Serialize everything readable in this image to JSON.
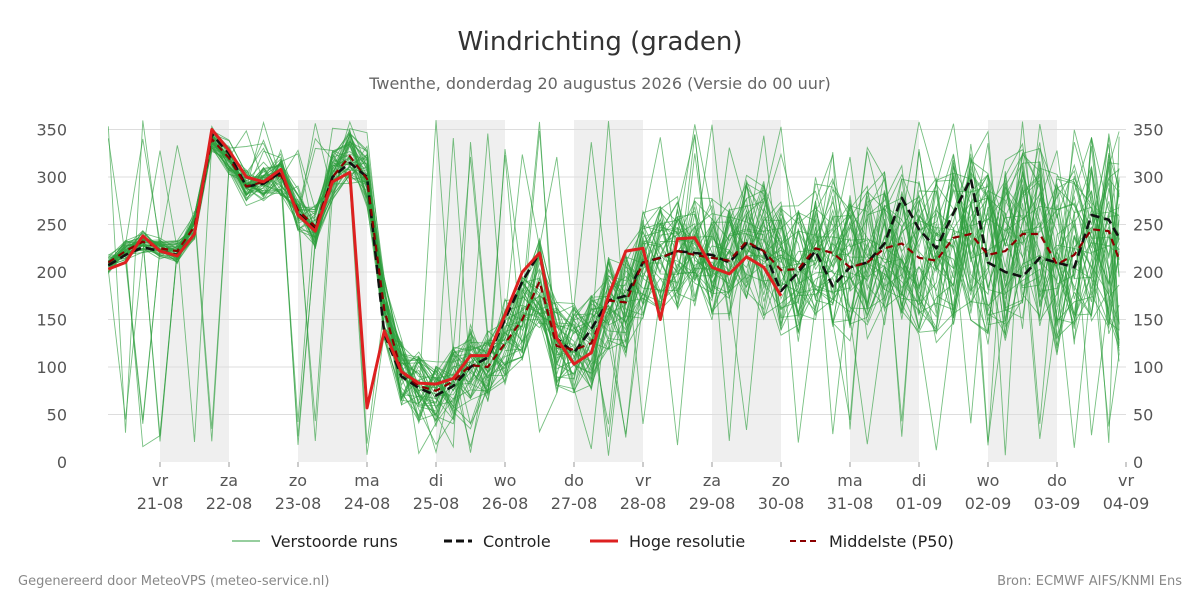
{
  "chart_data": {
    "type": "line",
    "title": "Windrichting (graden)",
    "subtitle": "Twenthe, donderdag 20 augustus 2026 (Versie do 00 uur)",
    "ylim": [
      0,
      360
    ],
    "y_ticks": [
      0,
      50,
      100,
      150,
      200,
      250,
      300,
      350
    ],
    "x_range": [
      -0.75,
      13.9
    ],
    "x_ticks": [
      {
        "day": "vr",
        "date": "21-08"
      },
      {
        "day": "za",
        "date": "22-08"
      },
      {
        "day": "zo",
        "date": "23-08"
      },
      {
        "day": "ma",
        "date": "24-08"
      },
      {
        "day": "di",
        "date": "25-08"
      },
      {
        "day": "wo",
        "date": "26-08"
      },
      {
        "day": "do",
        "date": "27-08"
      },
      {
        "day": "vr",
        "date": "28-08"
      },
      {
        "day": "za",
        "date": "29-08"
      },
      {
        "day": "zo",
        "date": "30-08"
      },
      {
        "day": "ma",
        "date": "31-08"
      },
      {
        "day": "di",
        "date": "01-09"
      },
      {
        "day": "wo",
        "date": "02-09"
      },
      {
        "day": "do",
        "date": "03-09"
      },
      {
        "day": "vr",
        "date": "04-09"
      }
    ],
    "weekend_bands": [
      [
        0,
        1
      ],
      [
        2,
        3
      ],
      [
        4,
        5
      ],
      [
        6,
        7
      ],
      [
        8,
        9
      ],
      [
        10,
        11
      ],
      [
        12,
        13
      ]
    ],
    "legend": {
      "position": "bottom",
      "entries": [
        "Verstoorde runs",
        "Controle",
        "Hoge resolutie",
        "Middelste (P50)"
      ]
    },
    "colors": {
      "ensemble": "#2e9e3e",
      "controle": "#111111",
      "hoge_resolutie": "#dd2020",
      "middelste": "#8b0000",
      "band": "#efefef",
      "grid": "#dddddd"
    },
    "ensemble_count": 50,
    "series": [
      {
        "name": "Controle",
        "x": [
          -0.75,
          -0.5,
          -0.25,
          0,
          0.25,
          0.5,
          0.75,
          1,
          1.25,
          1.5,
          1.75,
          2,
          2.25,
          2.5,
          2.75,
          3,
          3.25,
          3.5,
          3.75,
          4,
          4.25,
          4.5,
          4.75,
          5,
          5.25,
          5.5,
          5.75,
          6,
          6.25,
          6.5,
          6.75,
          7,
          7.25,
          7.5,
          7.75,
          8,
          8.25,
          8.5,
          8.75,
          9,
          9.25,
          9.5,
          9.75,
          10,
          10.25,
          10.5,
          10.75,
          11,
          11.25,
          11.5,
          11.75,
          12,
          12.25,
          12.5,
          12.75,
          13,
          13.25,
          13.5,
          13.75,
          13.9
        ],
        "values": [
          207,
          218,
          226,
          222,
          218,
          240,
          345,
          325,
          290,
          293,
          305,
          262,
          245,
          300,
          315,
          300,
          135,
          90,
          78,
          70,
          80,
          100,
          110,
          150,
          190,
          220,
          130,
          115,
          140,
          170,
          175,
          210,
          215,
          222,
          220,
          218,
          210,
          230,
          222,
          180,
          200,
          222,
          185,
          205,
          210,
          230,
          278,
          245,
          225,
          262,
          298,
          210,
          200,
          195,
          215,
          210,
          205,
          260,
          255,
          236
        ]
      },
      {
        "name": "Hoge resolutie",
        "x": [
          -0.75,
          -0.5,
          -0.25,
          0,
          0.25,
          0.5,
          0.75,
          1,
          1.25,
          1.5,
          1.75,
          2,
          2.25,
          2.5,
          2.75,
          3,
          3.25,
          3.5,
          3.75,
          4,
          4.25,
          4.5,
          4.75,
          5,
          5.25,
          5.5,
          5.75,
          6,
          6.25,
          6.5,
          6.75,
          7,
          7.25,
          7.5,
          7.75,
          8,
          8.25,
          8.5,
          8.75,
          9
        ],
        "values": [
          203,
          210,
          238,
          222,
          217,
          240,
          350,
          328,
          300,
          295,
          308,
          260,
          243,
          295,
          305,
          57,
          138,
          95,
          83,
          82,
          88,
          112,
          112,
          155,
          200,
          220,
          130,
          103,
          115,
          175,
          222,
          225,
          150,
          235,
          236,
          205,
          198,
          216,
          205,
          175
        ]
      },
      {
        "name": "Middelste (P50)",
        "x": [
          -0.75,
          -0.5,
          -0.25,
          0,
          0.25,
          0.5,
          0.75,
          1,
          1.25,
          1.5,
          1.75,
          2,
          2.25,
          2.5,
          2.75,
          3,
          3.25,
          3.5,
          3.75,
          4,
          4.25,
          4.5,
          4.75,
          5,
          5.25,
          5.5,
          5.75,
          6,
          6.25,
          6.5,
          6.75,
          7,
          7.25,
          7.5,
          7.75,
          8,
          8.25,
          8.5,
          8.75,
          9,
          9.25,
          9.5,
          9.75,
          10,
          10.25,
          10.5,
          10.75,
          11,
          11.25,
          11.5,
          11.75,
          12,
          12.25,
          12.5,
          12.75,
          13,
          13.25,
          13.5,
          13.75,
          13.9
        ],
        "values": [
          210,
          222,
          232,
          225,
          222,
          248,
          340,
          320,
          290,
          295,
          302,
          265,
          248,
          300,
          322,
          298,
          160,
          95,
          80,
          75,
          85,
          102,
          100,
          125,
          150,
          190,
          122,
          118,
          125,
          170,
          168,
          210,
          215,
          222,
          218,
          215,
          212,
          232,
          222,
          202,
          203,
          225,
          220,
          205,
          210,
          225,
          230,
          215,
          212,
          236,
          240,
          218,
          222,
          240,
          240,
          208,
          218,
          245,
          243,
          213
        ]
      }
    ]
  },
  "footer": {
    "left": "Gegenereerd door MeteoVPS (meteo-service.nl)",
    "right": "Bron: ECMWF AIFS/KNMI Ens"
  }
}
